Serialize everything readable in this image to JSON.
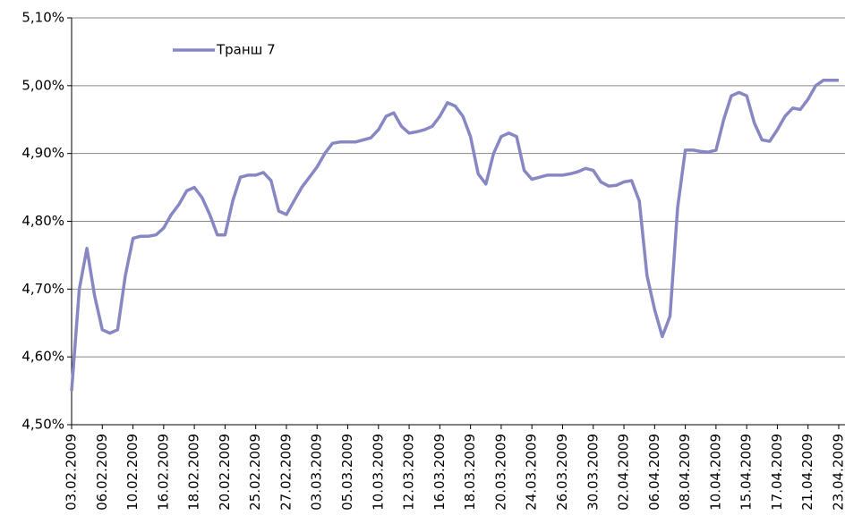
{
  "chart_data": {
    "type": "line",
    "categories": [
      "03.02.2009",
      null,
      null,
      null,
      "06.02.2009",
      null,
      null,
      null,
      "10.02.2009",
      null,
      null,
      null,
      "16.02.2009",
      null,
      null,
      null,
      "18.02.2009",
      null,
      null,
      null,
      "20.02.2009",
      null,
      null,
      null,
      "25.02.2009",
      null,
      null,
      null,
      "27.02.2009",
      null,
      null,
      null,
      "03.03.2009",
      null,
      null,
      null,
      "05.03.2009",
      null,
      null,
      null,
      "10.03.2009",
      null,
      null,
      null,
      "12.03.2009",
      null,
      null,
      null,
      "16.03.2009",
      null,
      null,
      null,
      "18.03.2009",
      null,
      null,
      null,
      "20.03.2009",
      null,
      null,
      null,
      "24.03.2009",
      null,
      null,
      null,
      "26.03.2009",
      null,
      null,
      null,
      "30.03.2009",
      null,
      null,
      null,
      "02.04.2009",
      null,
      null,
      null,
      "06.04.2009",
      null,
      null,
      null,
      "08.04.2009",
      null,
      null,
      null,
      "10.04.2009",
      null,
      null,
      null,
      "15.04.2009",
      null,
      null,
      null,
      "17.04.2009",
      null,
      null,
      null,
      "21.04.2009",
      null,
      null,
      null,
      "23.04.2009"
    ],
    "series": [
      {
        "name": "Транш 7",
        "color": "#8787c4",
        "values": [
          4.55,
          4.7,
          4.76,
          4.69,
          4.64,
          4.635,
          4.64,
          4.72,
          4.775,
          4.778,
          4.778,
          4.78,
          4.79,
          4.81,
          4.825,
          4.845,
          4.85,
          4.835,
          4.81,
          4.78,
          4.78,
          4.83,
          4.865,
          4.868,
          4.868,
          4.872,
          4.86,
          4.815,
          4.81,
          4.83,
          4.85,
          4.865,
          4.88,
          4.9,
          4.915,
          4.917,
          4.917,
          4.917,
          4.92,
          4.923,
          4.935,
          4.955,
          4.96,
          4.94,
          4.93,
          4.932,
          4.935,
          4.94,
          4.955,
          4.975,
          4.97,
          4.955,
          4.925,
          4.87,
          4.855,
          4.9,
          4.925,
          4.93,
          4.925,
          4.875,
          4.862,
          4.865,
          4.868,
          4.868,
          4.868,
          4.87,
          4.873,
          4.878,
          4.875,
          4.858,
          4.852,
          4.853,
          4.858,
          4.86,
          4.83,
          4.72,
          4.67,
          4.63,
          4.66,
          4.82,
          4.905,
          4.905,
          4.903,
          4.902,
          4.905,
          4.95,
          4.985,
          4.99,
          4.985,
          4.945,
          4.92,
          4.918,
          4.935,
          4.955,
          4.967,
          4.965,
          4.98,
          5.0,
          5.008,
          5.008,
          5.008
        ]
      }
    ],
    "ylim": [
      4.5,
      5.1
    ],
    "yticks": [
      {
        "value": 4.5,
        "label": "4,50%"
      },
      {
        "value": 4.6,
        "label": "4,60%"
      },
      {
        "value": 4.7,
        "label": "4,70%"
      },
      {
        "value": 4.8,
        "label": "4,80%"
      },
      {
        "value": 4.9,
        "label": "4,90%"
      },
      {
        "value": 5.0,
        "label": "5,00%"
      },
      {
        "value": 5.1,
        "label": "5,10%"
      }
    ],
    "grid": true,
    "legend": "top-left"
  }
}
